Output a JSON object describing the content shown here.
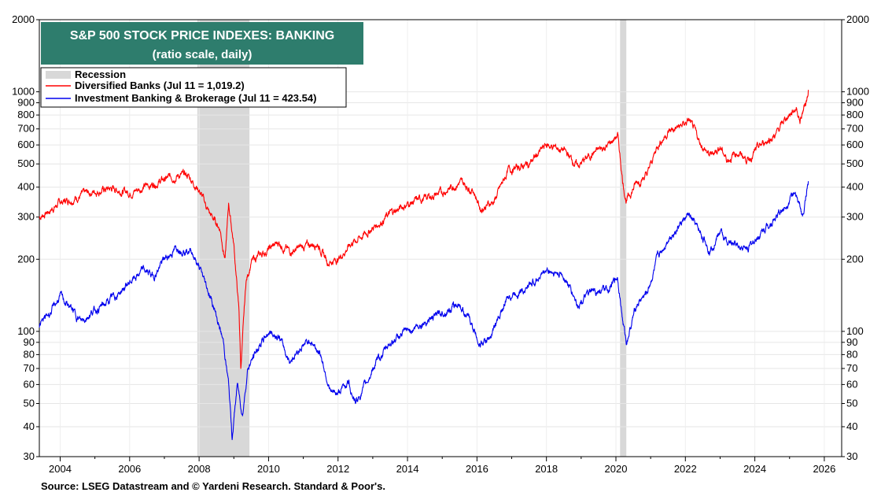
{
  "chart_data": {
    "type": "line",
    "title": "S&P 500 STOCK PRICE INDEXES: BANKING",
    "subtitle": "(ratio scale, daily)",
    "scale": "log",
    "xlim": [
      2003.4,
      2026.5
    ],
    "ylim": [
      30,
      2000
    ],
    "x_ticks": [
      "2004",
      "2006",
      "2008",
      "2010",
      "2012",
      "2014",
      "2016",
      "2018",
      "2020",
      "2022",
      "2024",
      "2026"
    ],
    "y_ticks": [
      "30",
      "40",
      "50",
      "60",
      "70",
      "80",
      "90",
      "100",
      "200",
      "300",
      "400",
      "500",
      "600",
      "700",
      "800",
      "900",
      "1000",
      "2000"
    ],
    "grid": true,
    "legend_position": "top-left",
    "recession_label": "Recession",
    "recessions": [
      [
        2007.95,
        2009.45
      ],
      [
        2020.12,
        2020.3
      ]
    ],
    "series": [
      {
        "name": "Diversified Banks (Jul 11 = 1,019.2)",
        "color": "#ff0000",
        "points": [
          [
            2003.4,
            300
          ],
          [
            2003.7,
            320
          ],
          [
            2004.0,
            345
          ],
          [
            2004.5,
            365
          ],
          [
            2005.0,
            385
          ],
          [
            2005.5,
            395
          ],
          [
            2006.0,
            380
          ],
          [
            2006.5,
            405
          ],
          [
            2007.0,
            430
          ],
          [
            2007.4,
            450
          ],
          [
            2007.7,
            445
          ],
          [
            2008.0,
            390
          ],
          [
            2008.3,
            310
          ],
          [
            2008.6,
            270
          ],
          [
            2008.75,
            200
          ],
          [
            2008.85,
            340
          ],
          [
            2009.0,
            230
          ],
          [
            2009.15,
            120
          ],
          [
            2009.2,
            70
          ],
          [
            2009.35,
            160
          ],
          [
            2009.5,
            195
          ],
          [
            2009.8,
            210
          ],
          [
            2010.3,
            235
          ],
          [
            2010.6,
            215
          ],
          [
            2011.0,
            225
          ],
          [
            2011.4,
            235
          ],
          [
            2011.7,
            195
          ],
          [
            2012.0,
            200
          ],
          [
            2012.4,
            235
          ],
          [
            2012.7,
            250
          ],
          [
            2013.0,
            270
          ],
          [
            2013.5,
            310
          ],
          [
            2014.0,
            340
          ],
          [
            2014.5,
            360
          ],
          [
            2015.0,
            380
          ],
          [
            2015.5,
            420
          ],
          [
            2015.9,
            390
          ],
          [
            2016.1,
            325
          ],
          [
            2016.5,
            350
          ],
          [
            2016.9,
            470
          ],
          [
            2017.5,
            500
          ],
          [
            2018.0,
            600
          ],
          [
            2018.5,
            570
          ],
          [
            2018.9,
            490
          ],
          [
            2019.3,
            550
          ],
          [
            2019.8,
            600
          ],
          [
            2020.05,
            660
          ],
          [
            2020.2,
            420
          ],
          [
            2020.3,
            350
          ],
          [
            2020.6,
            420
          ],
          [
            2020.9,
            450
          ],
          [
            2021.2,
            600
          ],
          [
            2021.5,
            680
          ],
          [
            2021.9,
            720
          ],
          [
            2022.1,
            760
          ],
          [
            2022.4,
            620
          ],
          [
            2022.7,
            540
          ],
          [
            2023.0,
            590
          ],
          [
            2023.2,
            520
          ],
          [
            2023.5,
            560
          ],
          [
            2023.8,
            520
          ],
          [
            2024.0,
            560
          ],
          [
            2024.3,
            620
          ],
          [
            2024.6,
            660
          ],
          [
            2024.9,
            780
          ],
          [
            2025.2,
            860
          ],
          [
            2025.3,
            760
          ],
          [
            2025.5,
            940
          ],
          [
            2025.54,
            1019.2
          ]
        ]
      },
      {
        "name": "Investment Banking & Brokerage (Jul 11 = 423.54)",
        "color": "#0000ee",
        "points": [
          [
            2003.4,
            105
          ],
          [
            2003.8,
            125
          ],
          [
            2004.0,
            140
          ],
          [
            2004.3,
            125
          ],
          [
            2004.6,
            110
          ],
          [
            2004.9,
            120
          ],
          [
            2005.3,
            130
          ],
          [
            2005.7,
            145
          ],
          [
            2006.0,
            160
          ],
          [
            2006.4,
            180
          ],
          [
            2006.7,
            170
          ],
          [
            2007.0,
            200
          ],
          [
            2007.4,
            225
          ],
          [
            2007.8,
            215
          ],
          [
            2008.1,
            170
          ],
          [
            2008.4,
            130
          ],
          [
            2008.7,
            90
          ],
          [
            2008.85,
            60
          ],
          [
            2008.95,
            36
          ],
          [
            2009.1,
            60
          ],
          [
            2009.25,
            45
          ],
          [
            2009.4,
            70
          ],
          [
            2009.7,
            85
          ],
          [
            2010.0,
            100
          ],
          [
            2010.3,
            95
          ],
          [
            2010.6,
            75
          ],
          [
            2010.9,
            85
          ],
          [
            2011.2,
            92
          ],
          [
            2011.5,
            80
          ],
          [
            2011.8,
            55
          ],
          [
            2012.0,
            55
          ],
          [
            2012.3,
            62
          ],
          [
            2012.5,
            50
          ],
          [
            2012.8,
            60
          ],
          [
            2013.0,
            70
          ],
          [
            2013.5,
            90
          ],
          [
            2014.0,
            100
          ],
          [
            2014.5,
            110
          ],
          [
            2015.0,
            120
          ],
          [
            2015.5,
            130
          ],
          [
            2015.8,
            110
          ],
          [
            2016.1,
            88
          ],
          [
            2016.4,
            95
          ],
          [
            2016.9,
            140
          ],
          [
            2017.5,
            155
          ],
          [
            2018.0,
            180
          ],
          [
            2018.5,
            170
          ],
          [
            2018.9,
            130
          ],
          [
            2019.3,
            145
          ],
          [
            2019.8,
            150
          ],
          [
            2020.05,
            170
          ],
          [
            2020.2,
            110
          ],
          [
            2020.3,
            90
          ],
          [
            2020.6,
            130
          ],
          [
            2020.9,
            145
          ],
          [
            2021.2,
            200
          ],
          [
            2021.5,
            245
          ],
          [
            2021.9,
            285
          ],
          [
            2022.1,
            305
          ],
          [
            2022.4,
            260
          ],
          [
            2022.7,
            220
          ],
          [
            2023.0,
            260
          ],
          [
            2023.2,
            235
          ],
          [
            2023.5,
            230
          ],
          [
            2023.8,
            220
          ],
          [
            2024.0,
            240
          ],
          [
            2024.4,
            280
          ],
          [
            2024.8,
            320
          ],
          [
            2025.1,
            380
          ],
          [
            2025.3,
            330
          ],
          [
            2025.4,
            300
          ],
          [
            2025.5,
            390
          ],
          [
            2025.54,
            423.54
          ]
        ]
      }
    ],
    "colors": {
      "title_bg": "#2e7d6d",
      "recession": "#d8d8d8"
    }
  },
  "source": "Source: LSEG Datastream and © Yardeni Research. Standard & Poor's."
}
